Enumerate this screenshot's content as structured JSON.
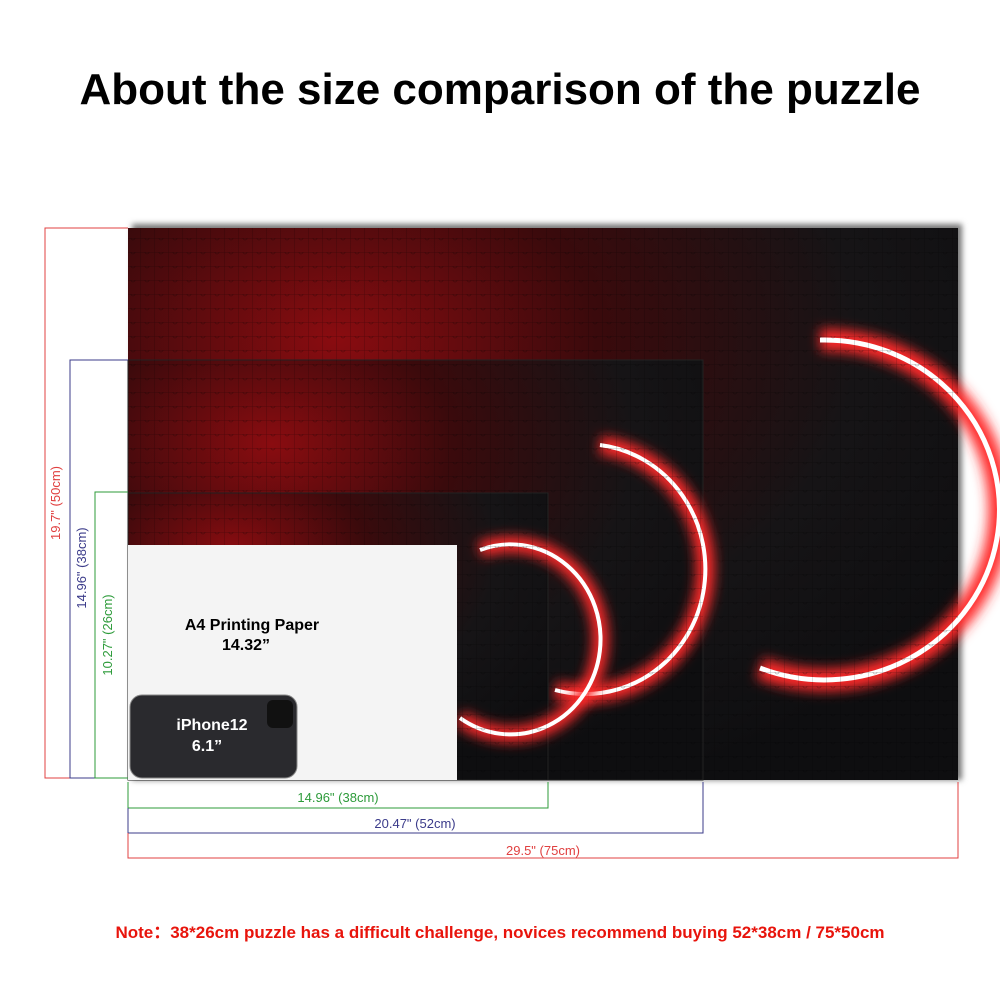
{
  "title": "About the size comparison of the puzzle",
  "heights": [
    "19.7\" (50cm)",
    "14.96\" (38cm)",
    "10.27\" (26cm)"
  ],
  "widths": [
    "14.96\" (38cm)",
    "20.47\" (52cm)",
    "29.5\" (75cm)"
  ],
  "a4": {
    "label": "A4 Printing Paper",
    "size": "14.32”"
  },
  "phone": {
    "label": "iPhone12",
    "size": "6.1”"
  },
  "note": "Note：38*26cm puzzle has a difficult challenge, novices recommend buying 52*38cm / 75*50cm"
}
